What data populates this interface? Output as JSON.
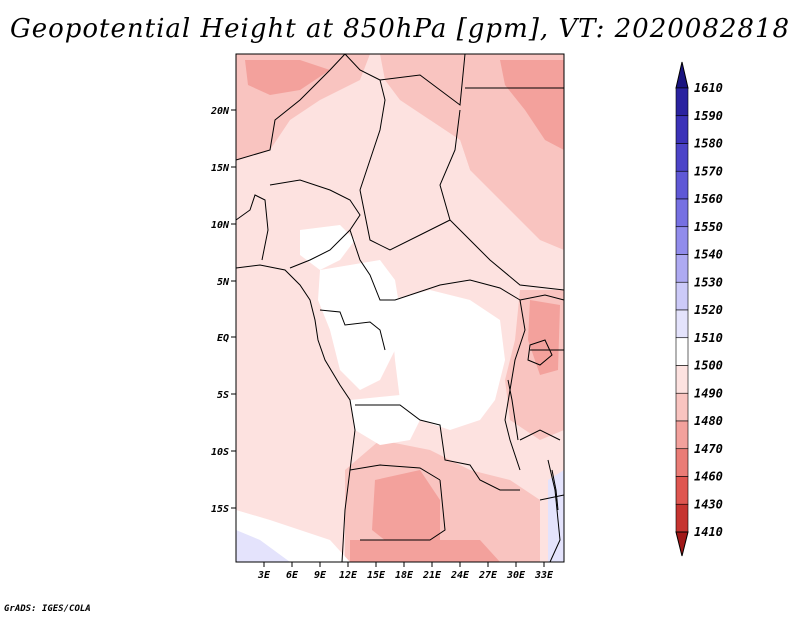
{
  "title": "Geopotential Height at 850hPa [gpm], VT: 2020082818",
  "credit": "GrADS: IGES/COLA",
  "axes": {
    "lat_labels": [
      "20N",
      "15N",
      "10N",
      "5N",
      "EQ",
      "5S",
      "10S",
      "15S"
    ],
    "lon_labels": [
      "3E",
      "6E",
      "9E",
      "12E",
      "15E",
      "18E",
      "21E",
      "24E",
      "27E",
      "30E",
      "33E"
    ]
  },
  "colorbar": {
    "levels": [
      "1610",
      "1590",
      "1580",
      "1570",
      "1560",
      "1550",
      "1540",
      "1530",
      "1520",
      "1510",
      "1500",
      "1490",
      "1480",
      "1470",
      "1460",
      "1430",
      "1410"
    ],
    "colors": [
      "#1a1480",
      "#2a22a0",
      "#3b32b8",
      "#4c44c8",
      "#5f58d6",
      "#7670e2",
      "#918cec",
      "#aeaaf2",
      "#cccaf8",
      "#e4e3fc",
      "#ffffff",
      "#fde2e0",
      "#f9c4c0",
      "#f3a19c",
      "#ea7c76",
      "#df5650",
      "#c63430",
      "#a01818"
    ]
  },
  "map_colors": {
    "c1500": "#fde2e0",
    "c1490": "#f9c4c0",
    "c1480": "#f3a19c",
    "c1510": "#ffffff",
    "c1520": "#e4e3fc"
  }
}
